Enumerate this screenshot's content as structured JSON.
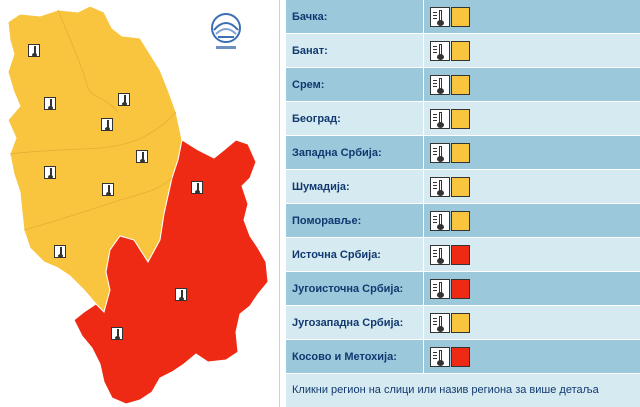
{
  "colors": {
    "yellow_warning": "#f9c43e",
    "orange_warning": "#ee2a14",
    "row_dark": "#9bc8db",
    "row_light": "#d6eaf2",
    "label_text": "#12396f"
  },
  "logo": {
    "icon": "rhmz-logo-icon"
  },
  "map": {
    "icons": [
      {
        "name": "map-thermometer-icon",
        "region": "Бачка"
      },
      {
        "name": "map-thermometer-icon",
        "region": "Бачка"
      },
      {
        "name": "map-thermometer-icon",
        "region": "Бачка"
      },
      {
        "name": "map-thermometer-icon",
        "region": "Банат"
      },
      {
        "name": "map-thermometer-icon",
        "region": "Банат"
      },
      {
        "name": "map-thermometer-icon",
        "region": "Београд"
      },
      {
        "name": "map-thermometer-icon",
        "region": "Западна Србија"
      },
      {
        "name": "map-thermometer-icon",
        "region": "Шумадија"
      },
      {
        "name": "map-thermometer-icon",
        "region": "Поморавље"
      },
      {
        "name": "map-thermometer-icon",
        "region": "Источна Србија"
      },
      {
        "name": "map-thermometer-icon",
        "region": "Југоисточна Србија"
      },
      {
        "name": "map-thermometer-icon",
        "region": "Косово и Метохија"
      }
    ]
  },
  "regions": [
    {
      "label": "Бачка:",
      "level": "yellow",
      "icon": "thermometer-icon"
    },
    {
      "label": "Банат:",
      "level": "yellow",
      "icon": "thermometer-icon"
    },
    {
      "label": "Срем:",
      "level": "yellow",
      "icon": "thermometer-icon"
    },
    {
      "label": "Београд:",
      "level": "yellow",
      "icon": "thermometer-icon"
    },
    {
      "label": "Западна Србија:",
      "level": "yellow",
      "icon": "thermometer-icon"
    },
    {
      "label": "Шумадија:",
      "level": "yellow",
      "icon": "thermometer-icon"
    },
    {
      "label": "Поморавље:",
      "level": "yellow",
      "icon": "thermometer-icon"
    },
    {
      "label": "Источна Србија:",
      "level": "red",
      "icon": "thermometer-icon"
    },
    {
      "label": "Југоисточна Србија:",
      "level": "red",
      "icon": "thermometer-icon"
    },
    {
      "label": "Југозападна Србија:",
      "level": "yellow",
      "icon": "thermometer-icon"
    },
    {
      "label": "Косово и Метохија:",
      "level": "red",
      "icon": "thermometer-icon"
    }
  ],
  "footer": {
    "text": "Кликни регион на слици или назив региона за више детаља"
  }
}
